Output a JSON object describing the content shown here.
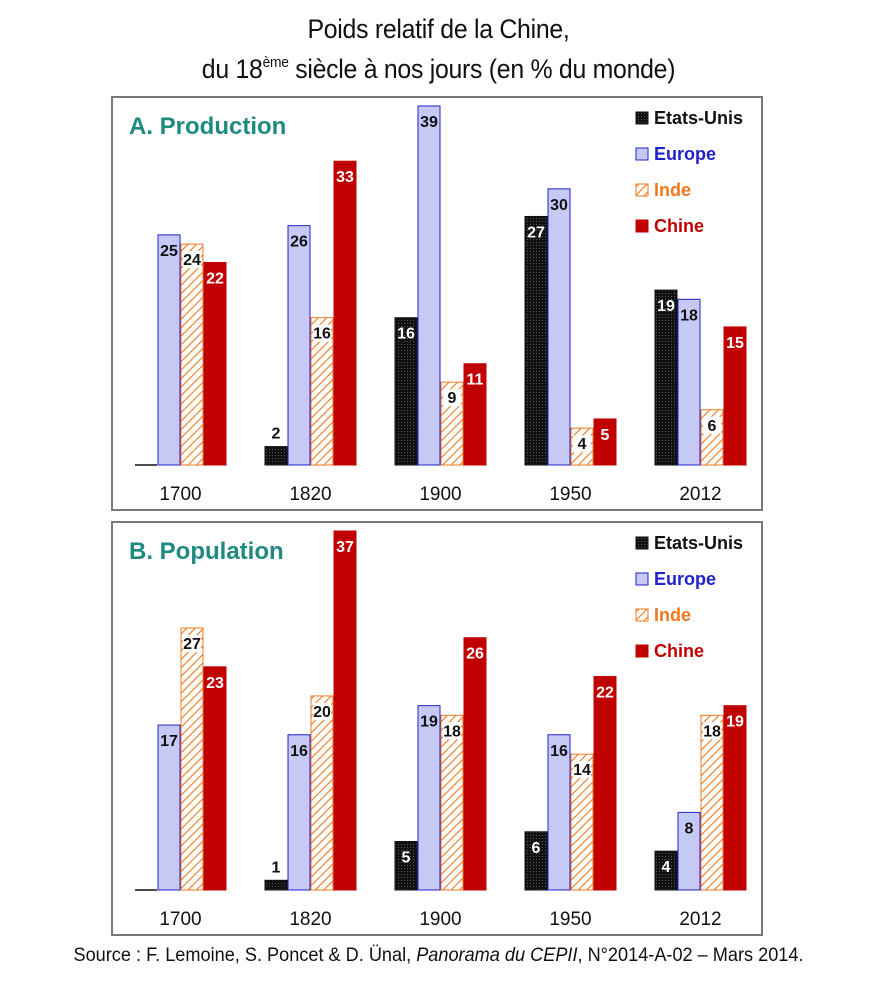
{
  "title": {
    "line1": "Poids relatif de la Chine,",
    "line2_pre": "du 18",
    "line2_sup": "ème",
    "line2_post": " siècle à nos jours (en % du monde)"
  },
  "source": {
    "prefix": "Source : F. Lemoine, S. Poncet & D. Ünal, ",
    "publication": "Panorama du CEPII",
    "suffix": ", N°2014-A-02 – Mars 2014."
  },
  "colors": {
    "etats_unis": "#111111",
    "europe": "#c7c9f5",
    "europe_border": "#2222cc",
    "inde": "#ffffff",
    "inde_hatch": "#f0781e",
    "chine": "#c00000",
    "panel_title": "#1f8a80"
  },
  "chart_data": [
    {
      "type": "bar",
      "title": "A. Production",
      "categories": [
        "1700",
        "1820",
        "1900",
        "1950",
        "2012"
      ],
      "ylim": [
        0,
        39
      ],
      "series": [
        {
          "name": "Etats-Unis",
          "values": [
            0,
            2,
            16,
            27,
            19
          ]
        },
        {
          "name": "Europe",
          "values": [
            25,
            26,
            39,
            30,
            18
          ]
        },
        {
          "name": "Inde",
          "values": [
            24,
            16,
            9,
            4,
            6
          ]
        },
        {
          "name": "Chine",
          "values": [
            22,
            33,
            11,
            5,
            15
          ]
        }
      ],
      "legend": "top-right"
    },
    {
      "type": "bar",
      "title": "B. Population",
      "categories": [
        "1700",
        "1820",
        "1900",
        "1950",
        "2012"
      ],
      "ylim": [
        0,
        37
      ],
      "series": [
        {
          "name": "Etats-Unis",
          "values": [
            0,
            1,
            5,
            6,
            4
          ]
        },
        {
          "name": "Europe",
          "values": [
            17,
            16,
            19,
            16,
            8
          ]
        },
        {
          "name": "Inde",
          "values": [
            27,
            20,
            18,
            14,
            18
          ]
        },
        {
          "name": "Chine",
          "values": [
            23,
            37,
            26,
            22,
            19
          ]
        }
      ],
      "legend": "top-right"
    }
  ]
}
